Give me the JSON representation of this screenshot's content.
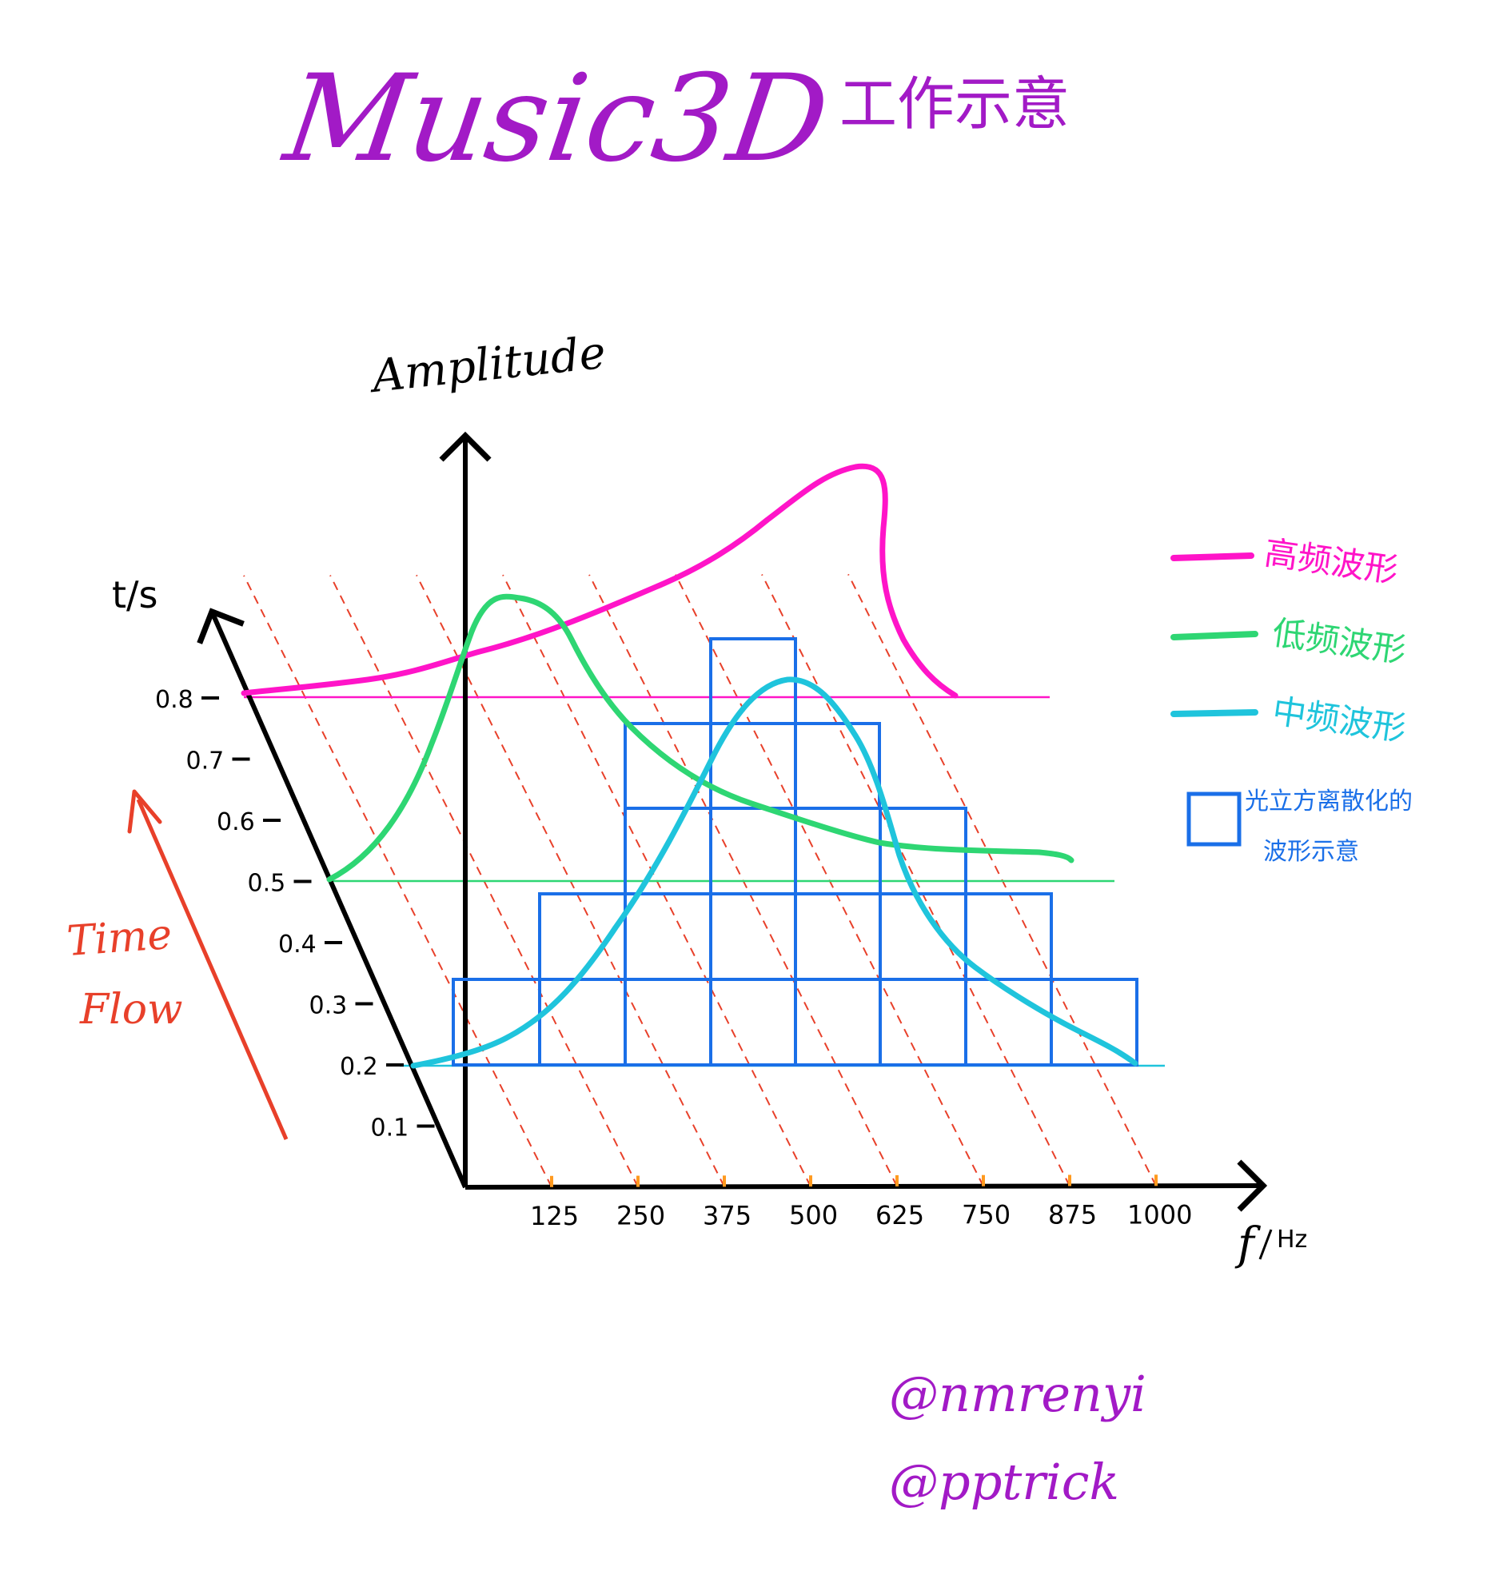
{
  "title": {
    "main": "Music3D",
    "sub": "工作示意",
    "color": "#a21ac6"
  },
  "axes": {
    "amplitude_label": "Amplitude",
    "time_label": "t/s",
    "freq_label_f": "f",
    "freq_label_hz": "Hz",
    "time_ticks": [
      "0.8",
      "0.7",
      "0.6",
      "0.5",
      "0.4",
      "0.3",
      "0.2",
      "0.1"
    ],
    "freq_ticks": [
      "125",
      "250",
      "375",
      "500",
      "625",
      "750",
      "875",
      "1000"
    ]
  },
  "time_flow": {
    "line1": "Time",
    "line2": "Flow",
    "color": "#e8402a"
  },
  "legend": {
    "high": {
      "label": "高频波形",
      "color": "#ff14c8"
    },
    "low": {
      "label": "低频波形",
      "color": "#2ed673"
    },
    "mid": {
      "label": "中频波形",
      "color": "#1fc4dc"
    },
    "cube_line1": "光立方离散化的",
    "cube_line2": "波形示意",
    "cube_color": "#1a6fe8"
  },
  "waves": {
    "high": {
      "time": 0.8
    },
    "low": {
      "time": 0.5
    },
    "mid": {
      "time": 0.2
    }
  },
  "credits": {
    "line1": "@nmrenyi",
    "line2": "@pptrick",
    "color": "#a21ac6"
  }
}
